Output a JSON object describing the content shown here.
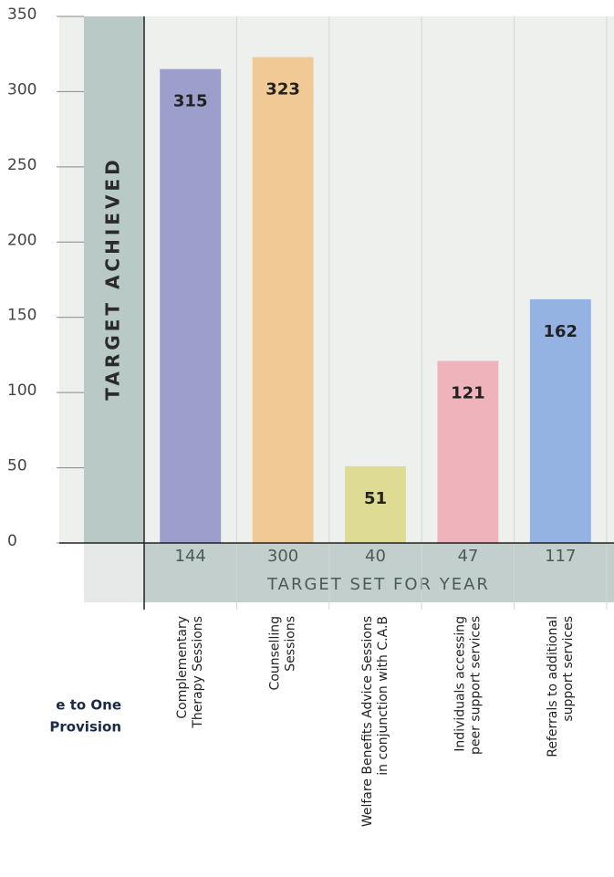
{
  "chart_data": {
    "type": "bar",
    "y_label": "TARGET ACHIEVED",
    "x_label": "TARGET SET FOR YEAR",
    "side_note": [
      "e to One",
      "Provision"
    ],
    "categories": [
      [
        "Complementary",
        "Therapy Sessions"
      ],
      [
        "Counselling",
        "Sessions"
      ],
      [
        "Welfare Benefits Advice Sessions",
        "in conjunction with C.A.B"
      ],
      [
        "Individuals accessing",
        "peer support services"
      ],
      [
        "Referrals to additional",
        "support services"
      ]
    ],
    "values": [
      315,
      323,
      51,
      121,
      162
    ],
    "targets": [
      144,
      300,
      40,
      47,
      117
    ],
    "colors": [
      "#9c9ecb",
      "#f1c994",
      "#dedb95",
      "#efb3bb",
      "#94b3e2"
    ],
    "ylim": [
      0,
      350
    ],
    "yticks": [
      0,
      50,
      100,
      150,
      200,
      250,
      300,
      350
    ]
  }
}
